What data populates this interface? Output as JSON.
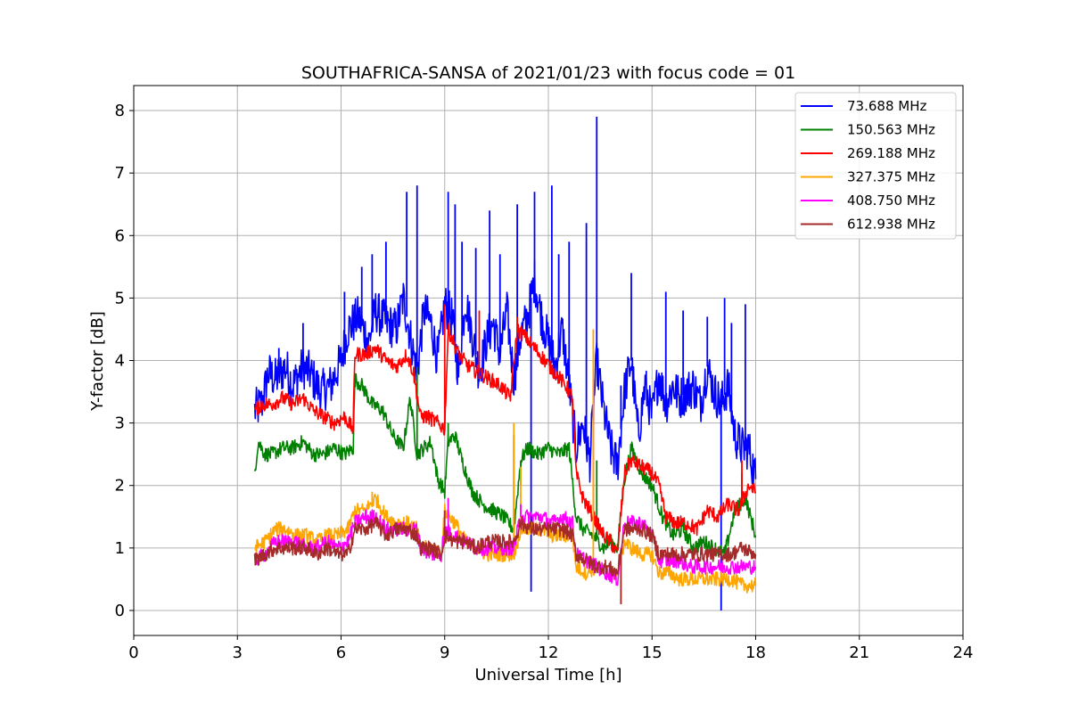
{
  "chart_data": {
    "type": "line",
    "title": "SOUTHAFRICA-SANSA of 2021/01/23 with focus code = 01",
    "xlabel": "Universal Time [h]",
    "ylabel": "Y-factor [dB]",
    "xlim": [
      0,
      24
    ],
    "ylim": [
      -0.4,
      8.4
    ],
    "xticks": [
      0,
      3,
      6,
      9,
      12,
      15,
      18,
      21,
      24
    ],
    "yticks": [
      0,
      1,
      2,
      3,
      4,
      5,
      6,
      7,
      8
    ],
    "grid": true,
    "legend_position": "top-right",
    "series": [
      {
        "name": "73.688 MHz",
        "legend_label": " 73.688 MHz",
        "color": "#0000ff",
        "x": [
          3.5,
          3.7,
          3.9,
          4.1,
          4.4,
          4.6,
          4.9,
          5.1,
          5.4,
          5.7,
          6.0,
          6.2,
          6.5,
          6.8,
          7.0,
          7.3,
          7.6,
          7.8,
          8.0,
          8.2,
          8.4,
          8.6,
          8.8,
          9.0,
          9.2,
          9.4,
          9.6,
          9.8,
          10.0,
          10.2,
          10.4,
          10.6,
          10.8,
          11.0,
          11.2,
          11.4,
          11.6,
          11.8,
          12.0,
          12.2,
          12.4,
          12.6,
          12.8,
          13.0,
          13.2,
          13.4,
          13.6,
          13.8,
          14.0,
          14.2,
          14.4,
          14.6,
          14.8,
          15.0,
          15.2,
          15.4,
          15.6,
          15.8,
          16.0,
          16.2,
          16.4,
          16.6,
          16.8,
          17.0,
          17.2,
          17.4,
          17.6,
          17.8,
          18.0
        ],
        "y": [
          3.2,
          3.3,
          3.8,
          3.7,
          3.9,
          3.6,
          3.9,
          3.8,
          3.5,
          3.6,
          4.0,
          4.5,
          4.7,
          4.3,
          4.8,
          4.6,
          4.5,
          5.0,
          4.4,
          3.8,
          4.8,
          4.6,
          4.0,
          4.9,
          4.7,
          3.8,
          5.0,
          4.4,
          3.8,
          4.3,
          4.6,
          4.1,
          4.8,
          3.7,
          4.4,
          4.7,
          5.3,
          4.7,
          4.3,
          3.9,
          4.5,
          3.6,
          2.6,
          3.0,
          2.4,
          4.0,
          3.2,
          2.6,
          2.3,
          3.5,
          4.0,
          2.8,
          3.6,
          3.1,
          3.8,
          3.3,
          3.6,
          3.4,
          3.5,
          3.6,
          3.3,
          3.9,
          3.5,
          3.3,
          3.6,
          2.8,
          2.6,
          2.6,
          2.1
        ],
        "spikes": [
          [
            4.2,
            4.2
          ],
          [
            4.9,
            4.6
          ],
          [
            6.1,
            5.1
          ],
          [
            6.6,
            5.5
          ],
          [
            6.9,
            5.7
          ],
          [
            7.3,
            5.9
          ],
          [
            7.9,
            6.7
          ],
          [
            8.2,
            6.8
          ],
          [
            9.1,
            6.7
          ],
          [
            9.3,
            6.5
          ],
          [
            9.5,
            5.9
          ],
          [
            9.9,
            5.8
          ],
          [
            10.3,
            6.4
          ],
          [
            10.6,
            5.7
          ],
          [
            11.1,
            6.5
          ],
          [
            11.6,
            6.7
          ],
          [
            12.1,
            6.8
          ],
          [
            12.3,
            5.7
          ],
          [
            13.4,
            7.9
          ],
          [
            13.1,
            6.2
          ],
          [
            14.4,
            5.4
          ],
          [
            15.4,
            5.1
          ],
          [
            15.9,
            4.8
          ],
          [
            16.6,
            4.7
          ],
          [
            17.1,
            5.0
          ],
          [
            17.3,
            4.6
          ],
          [
            17.7,
            4.9
          ],
          [
            11.5,
            0.3
          ],
          [
            17.0,
            0.0
          ],
          [
            12.6,
            5.9
          ],
          [
            14.1,
            3.6
          ]
        ]
      },
      {
        "name": "150.563 MHz",
        "legend_label": "150.563 MHz",
        "color": "#008000",
        "x": [
          3.5,
          3.6,
          3.8,
          4.0,
          4.3,
          4.6,
          4.9,
          5.2,
          5.5,
          5.8,
          6.1,
          6.35,
          6.4,
          6.6,
          6.9,
          7.2,
          7.5,
          7.8,
          8.0,
          8.2,
          8.4,
          8.6,
          8.8,
          9.0,
          9.1,
          9.3,
          9.5,
          9.8,
          10.1,
          10.4,
          10.7,
          11.0,
          11.2,
          11.4,
          11.7,
          12.0,
          12.3,
          12.6,
          12.8,
          13.0,
          13.3,
          13.6,
          13.8,
          14.0,
          14.2,
          14.4,
          14.7,
          15.0,
          15.3,
          15.6,
          15.9,
          16.2,
          16.5,
          16.8,
          17.1,
          17.4,
          17.7,
          18.0
        ],
        "y": [
          2.2,
          2.7,
          2.5,
          2.5,
          2.6,
          2.6,
          2.7,
          2.5,
          2.5,
          2.6,
          2.5,
          2.6,
          3.7,
          3.6,
          3.3,
          3.2,
          2.8,
          2.6,
          3.4,
          2.5,
          2.6,
          2.7,
          2.1,
          1.9,
          2.7,
          2.8,
          2.4,
          1.9,
          1.7,
          1.6,
          1.5,
          1.3,
          2.4,
          2.6,
          2.5,
          2.6,
          2.5,
          2.6,
          1.5,
          1.3,
          1.2,
          1.0,
          1.1,
          1.0,
          2.1,
          2.6,
          2.2,
          2.0,
          1.5,
          1.2,
          1.3,
          1.0,
          1.1,
          1.0,
          0.9,
          1.6,
          1.8,
          1.2
        ],
        "spikes": [
          [
            8.2,
            3.9
          ],
          [
            9.1,
            3.0
          ],
          [
            11.0,
            2.8
          ],
          [
            11.2,
            2.0
          ],
          [
            13.4,
            2.4
          ],
          [
            17.6,
            2.2
          ]
        ]
      },
      {
        "name": "269.188 MHz",
        "legend_label": "269.188 MHz",
        "color": "#ff0000",
        "x": [
          3.5,
          3.7,
          4.0,
          4.3,
          4.6,
          4.9,
          5.2,
          5.5,
          5.8,
          6.1,
          6.35,
          6.4,
          6.7,
          7.0,
          7.3,
          7.6,
          7.9,
          8.1,
          8.3,
          8.5,
          8.8,
          9.0,
          9.1,
          9.4,
          9.7,
          10.0,
          10.3,
          10.6,
          10.9,
          11.1,
          11.3,
          11.6,
          11.9,
          12.2,
          12.5,
          12.7,
          12.8,
          13.0,
          13.3,
          13.6,
          13.8,
          14.0,
          14.2,
          14.4,
          14.7,
          15.0,
          15.2,
          15.4,
          15.7,
          16.0,
          16.3,
          16.6,
          16.9,
          17.2,
          17.5,
          17.8,
          18.0
        ],
        "y": [
          3.2,
          3.3,
          3.3,
          3.4,
          3.3,
          3.4,
          3.2,
          3.1,
          3.0,
          3.1,
          2.9,
          4.1,
          4.1,
          4.2,
          4.0,
          3.9,
          4.1,
          3.8,
          3.1,
          3.1,
          3.0,
          2.9,
          4.5,
          4.1,
          3.9,
          3.8,
          3.7,
          3.6,
          3.4,
          4.5,
          4.4,
          4.2,
          4.0,
          3.8,
          3.6,
          3.4,
          2.2,
          1.8,
          1.5,
          1.2,
          1.1,
          0.9,
          2.2,
          2.4,
          2.3,
          2.2,
          2.0,
          1.5,
          1.4,
          1.4,
          1.3,
          1.6,
          1.5,
          1.7,
          1.6,
          2.0,
          1.9
        ],
        "spikes": [
          [
            9.0,
            4.9
          ],
          [
            10.0,
            4.8
          ],
          [
            11.1,
            4.7
          ],
          [
            13.3,
            3.7
          ],
          [
            17.6,
            2.4
          ]
        ]
      },
      {
        "name": "327.375 MHz",
        "legend_label": "327.375 MHz",
        "color": "#ffa500",
        "x": [
          3.5,
          3.8,
          4.1,
          4.4,
          4.7,
          5.0,
          5.3,
          5.6,
          5.9,
          6.2,
          6.4,
          6.7,
          7.0,
          7.3,
          7.6,
          7.9,
          8.2,
          8.3,
          8.6,
          8.9,
          9.0,
          9.3,
          9.6,
          9.9,
          10.2,
          10.5,
          10.8,
          11.0,
          11.2,
          11.5,
          11.8,
          12.1,
          12.4,
          12.7,
          12.8,
          13.1,
          13.4,
          13.7,
          14.0,
          14.2,
          14.4,
          14.7,
          15.0,
          15.2,
          15.5,
          15.8,
          16.1,
          16.4,
          16.7,
          17.0,
          17.3,
          17.6,
          18.0
        ],
        "y": [
          1.0,
          1.1,
          1.3,
          1.3,
          1.2,
          1.2,
          1.1,
          1.2,
          1.2,
          1.3,
          1.6,
          1.6,
          1.8,
          1.5,
          1.4,
          1.4,
          1.3,
          1.0,
          1.0,
          0.9,
          1.6,
          1.4,
          1.1,
          1.0,
          0.9,
          0.9,
          0.9,
          0.9,
          1.3,
          1.3,
          1.3,
          1.2,
          1.2,
          1.2,
          0.7,
          0.6,
          0.7,
          0.6,
          0.6,
          1.1,
          1.0,
          0.9,
          0.9,
          0.6,
          0.6,
          0.5,
          0.5,
          0.5,
          0.5,
          0.5,
          0.5,
          0.4,
          0.4
        ],
        "spikes": [
          [
            6.9,
            1.9
          ],
          [
            9.1,
            1.8
          ],
          [
            11.0,
            3.0
          ],
          [
            11.2,
            2.3
          ],
          [
            13.3,
            4.5
          ]
        ]
      },
      {
        "name": "408.750 MHz",
        "legend_label": "408.750 MHz",
        "color": "#ff00ff",
        "x": [
          3.5,
          3.8,
          4.1,
          4.4,
          4.7,
          5.0,
          5.3,
          5.6,
          5.9,
          6.2,
          6.4,
          6.7,
          7.0,
          7.3,
          7.6,
          7.9,
          8.2,
          8.3,
          8.6,
          8.9,
          9.0,
          9.3,
          9.6,
          9.9,
          10.2,
          10.5,
          10.8,
          11.0,
          11.2,
          11.5,
          11.8,
          12.1,
          12.4,
          12.7,
          12.8,
          13.1,
          13.4,
          13.7,
          14.0,
          14.2,
          14.4,
          14.7,
          15.0,
          15.2,
          15.5,
          15.8,
          16.1,
          16.4,
          16.7,
          17.0,
          17.3,
          17.6,
          18.0
        ],
        "y": [
          0.8,
          0.9,
          1.1,
          1.1,
          1.1,
          1.0,
          1.0,
          1.1,
          1.0,
          1.1,
          1.4,
          1.5,
          1.5,
          1.3,
          1.3,
          1.3,
          1.3,
          1.0,
          0.9,
          0.9,
          1.3,
          1.2,
          1.1,
          1.0,
          1.0,
          1.0,
          1.0,
          1.0,
          1.5,
          1.5,
          1.5,
          1.4,
          1.5,
          1.4,
          0.9,
          0.8,
          0.7,
          0.6,
          0.5,
          1.4,
          1.4,
          1.4,
          1.2,
          0.8,
          0.8,
          0.8,
          0.7,
          0.7,
          0.7,
          0.7,
          0.7,
          0.7,
          0.7
        ],
        "spikes": [
          [
            9.1,
            1.8
          ],
          [
            11.2,
            1.7
          ],
          [
            14.1,
            0.1
          ]
        ]
      },
      {
        "name": "612.938 MHz",
        "legend_label": "612.938 MHz",
        "color": "#a52a2a",
        "x": [
          3.5,
          3.8,
          4.1,
          4.4,
          4.7,
          5.0,
          5.3,
          5.6,
          5.9,
          6.2,
          6.4,
          6.7,
          7.0,
          7.3,
          7.6,
          7.9,
          8.2,
          8.3,
          8.6,
          8.9,
          9.0,
          9.3,
          9.6,
          9.9,
          10.2,
          10.5,
          10.8,
          11.0,
          11.2,
          11.5,
          11.8,
          12.1,
          12.4,
          12.7,
          12.8,
          13.1,
          13.4,
          13.7,
          14.0,
          14.2,
          14.4,
          14.7,
          15.0,
          15.2,
          15.5,
          15.8,
          16.1,
          16.4,
          16.7,
          17.0,
          17.3,
          17.6,
          18.0
        ],
        "y": [
          0.8,
          0.9,
          1.0,
          1.0,
          1.0,
          1.0,
          0.9,
          1.0,
          0.9,
          0.9,
          1.3,
          1.3,
          1.4,
          1.2,
          1.3,
          1.3,
          1.2,
          1.0,
          1.0,
          0.9,
          1.2,
          1.1,
          1.1,
          1.0,
          1.1,
          1.1,
          1.1,
          1.1,
          1.4,
          1.3,
          1.3,
          1.3,
          1.3,
          1.2,
          0.9,
          0.8,
          0.7,
          0.7,
          0.6,
          1.3,
          1.3,
          1.3,
          1.2,
          0.9,
          0.9,
          0.9,
          0.9,
          0.9,
          0.9,
          0.9,
          0.9,
          1.0,
          0.9
        ],
        "spikes": [
          [
            9.0,
            1.6
          ],
          [
            14.1,
            0.1
          ]
        ]
      }
    ]
  }
}
